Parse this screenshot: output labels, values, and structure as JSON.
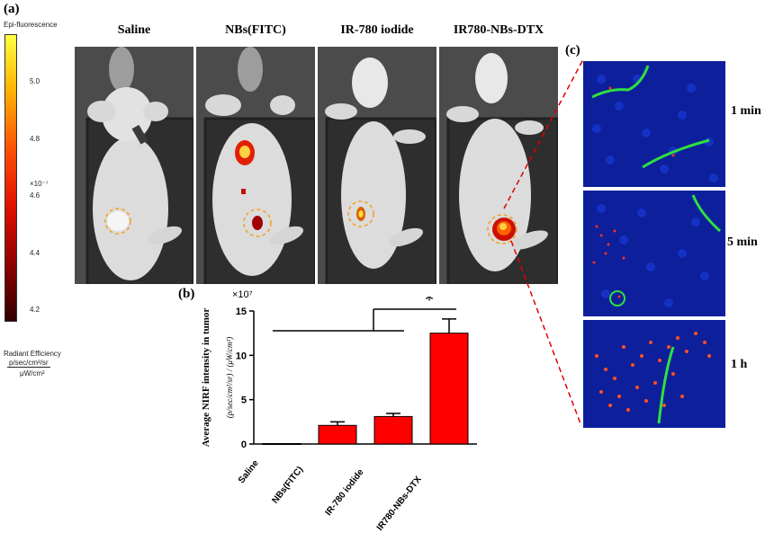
{
  "panels": {
    "a": "(a)",
    "b": "(b)",
    "c": "(c)"
  },
  "colorbar": {
    "title": "Epi-fluorescence",
    "ticks": [
      "5.0",
      "4.8",
      "4.6",
      "4.4",
      "4.2"
    ],
    "scale": "×10⁻⁷",
    "unit_line1": "Radiant Efficiency",
    "unit_line2": "p/sec/cm²/sr",
    "unit_line3": "μW/cm²",
    "colors": [
      "#ffff40",
      "#ffb000",
      "#ff5000",
      "#e01000",
      "#900000",
      "#300000"
    ]
  },
  "groups": [
    "Saline",
    "NBs(FITC)",
    "IR-780 iodide",
    "IR780-NBs-DTX"
  ],
  "timepoints": [
    "1 min",
    "5 min",
    "1 h"
  ],
  "significance": "*",
  "chart_data": {
    "type": "bar",
    "categories": [
      "Saline",
      "NBs(FITC)",
      "IR-780 iodide",
      "IR780-NBs-DTX"
    ],
    "values": [
      0.05,
      2.1,
      3.1,
      12.5
    ],
    "errors": [
      0,
      0.4,
      0.35,
      1.6
    ],
    "ylim": [
      0,
      15
    ],
    "yticks": [
      "0",
      "5",
      "10",
      "15"
    ],
    "scale_label": "×10⁷",
    "ylabel": "Average NIRF intensity in tumor",
    "yunit": "(p/sec/cm²/sr) / (μW/cm²)",
    "bar_color": "#ff0000"
  }
}
